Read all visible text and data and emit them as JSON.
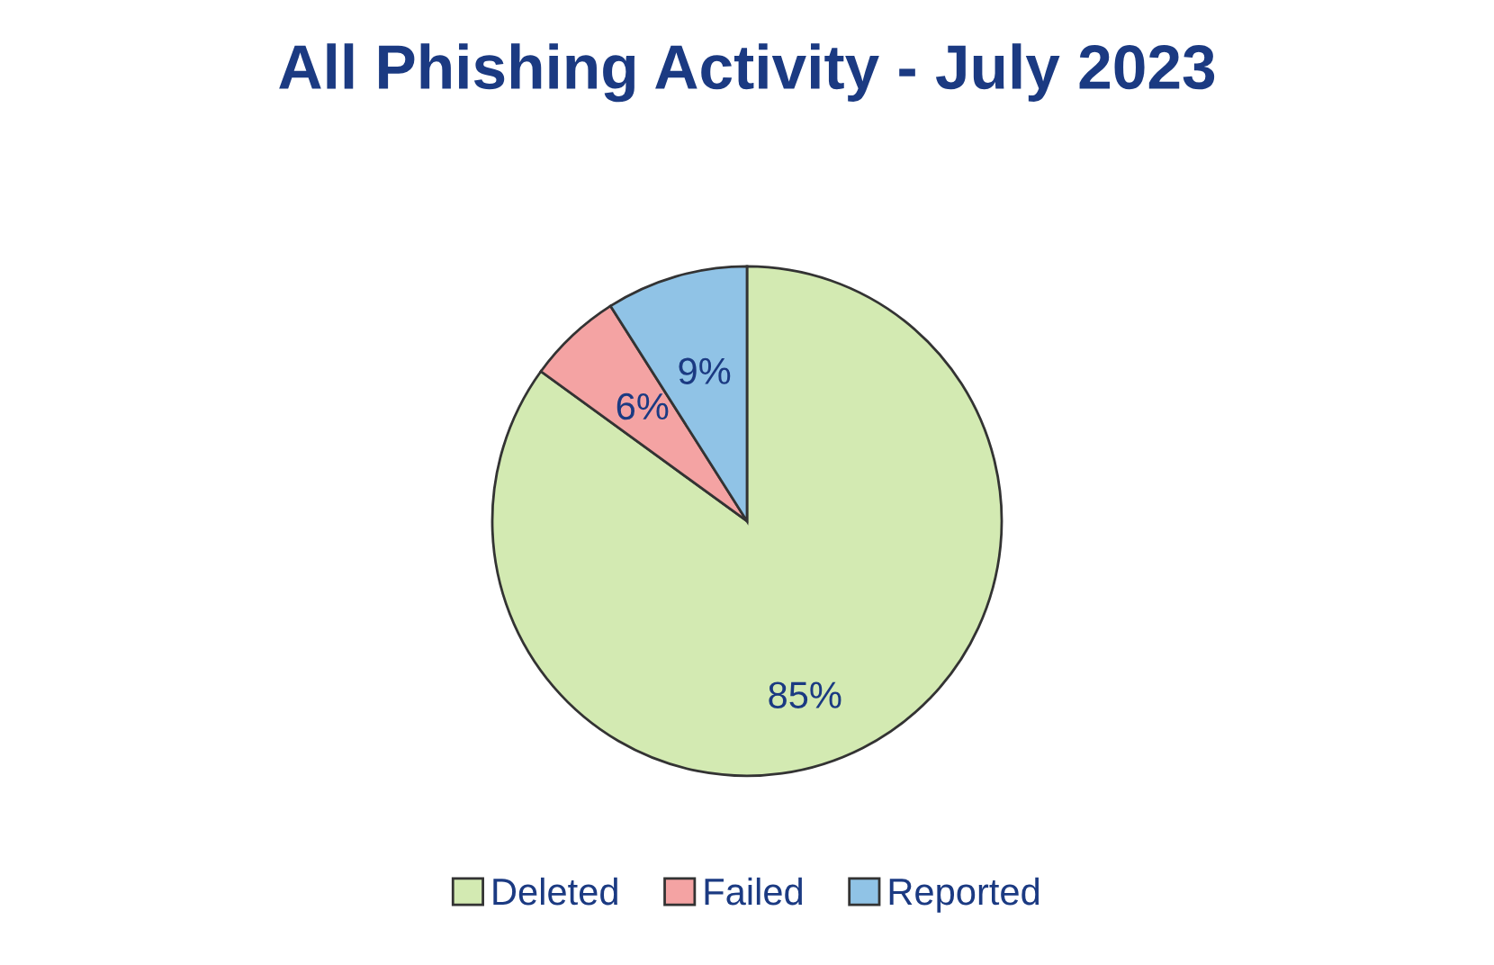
{
  "chart_data": {
    "type": "pie",
    "title": "All Phishing Activity - July 2023",
    "categories": [
      "Deleted",
      "Failed",
      "Reported"
    ],
    "values": [
      85,
      6,
      9
    ],
    "colors": [
      "#d3eab2",
      "#f4a3a3",
      "#90c3e6"
    ],
    "value_labels": [
      "85%",
      "6%",
      "9%"
    ],
    "legend": "bottom"
  }
}
